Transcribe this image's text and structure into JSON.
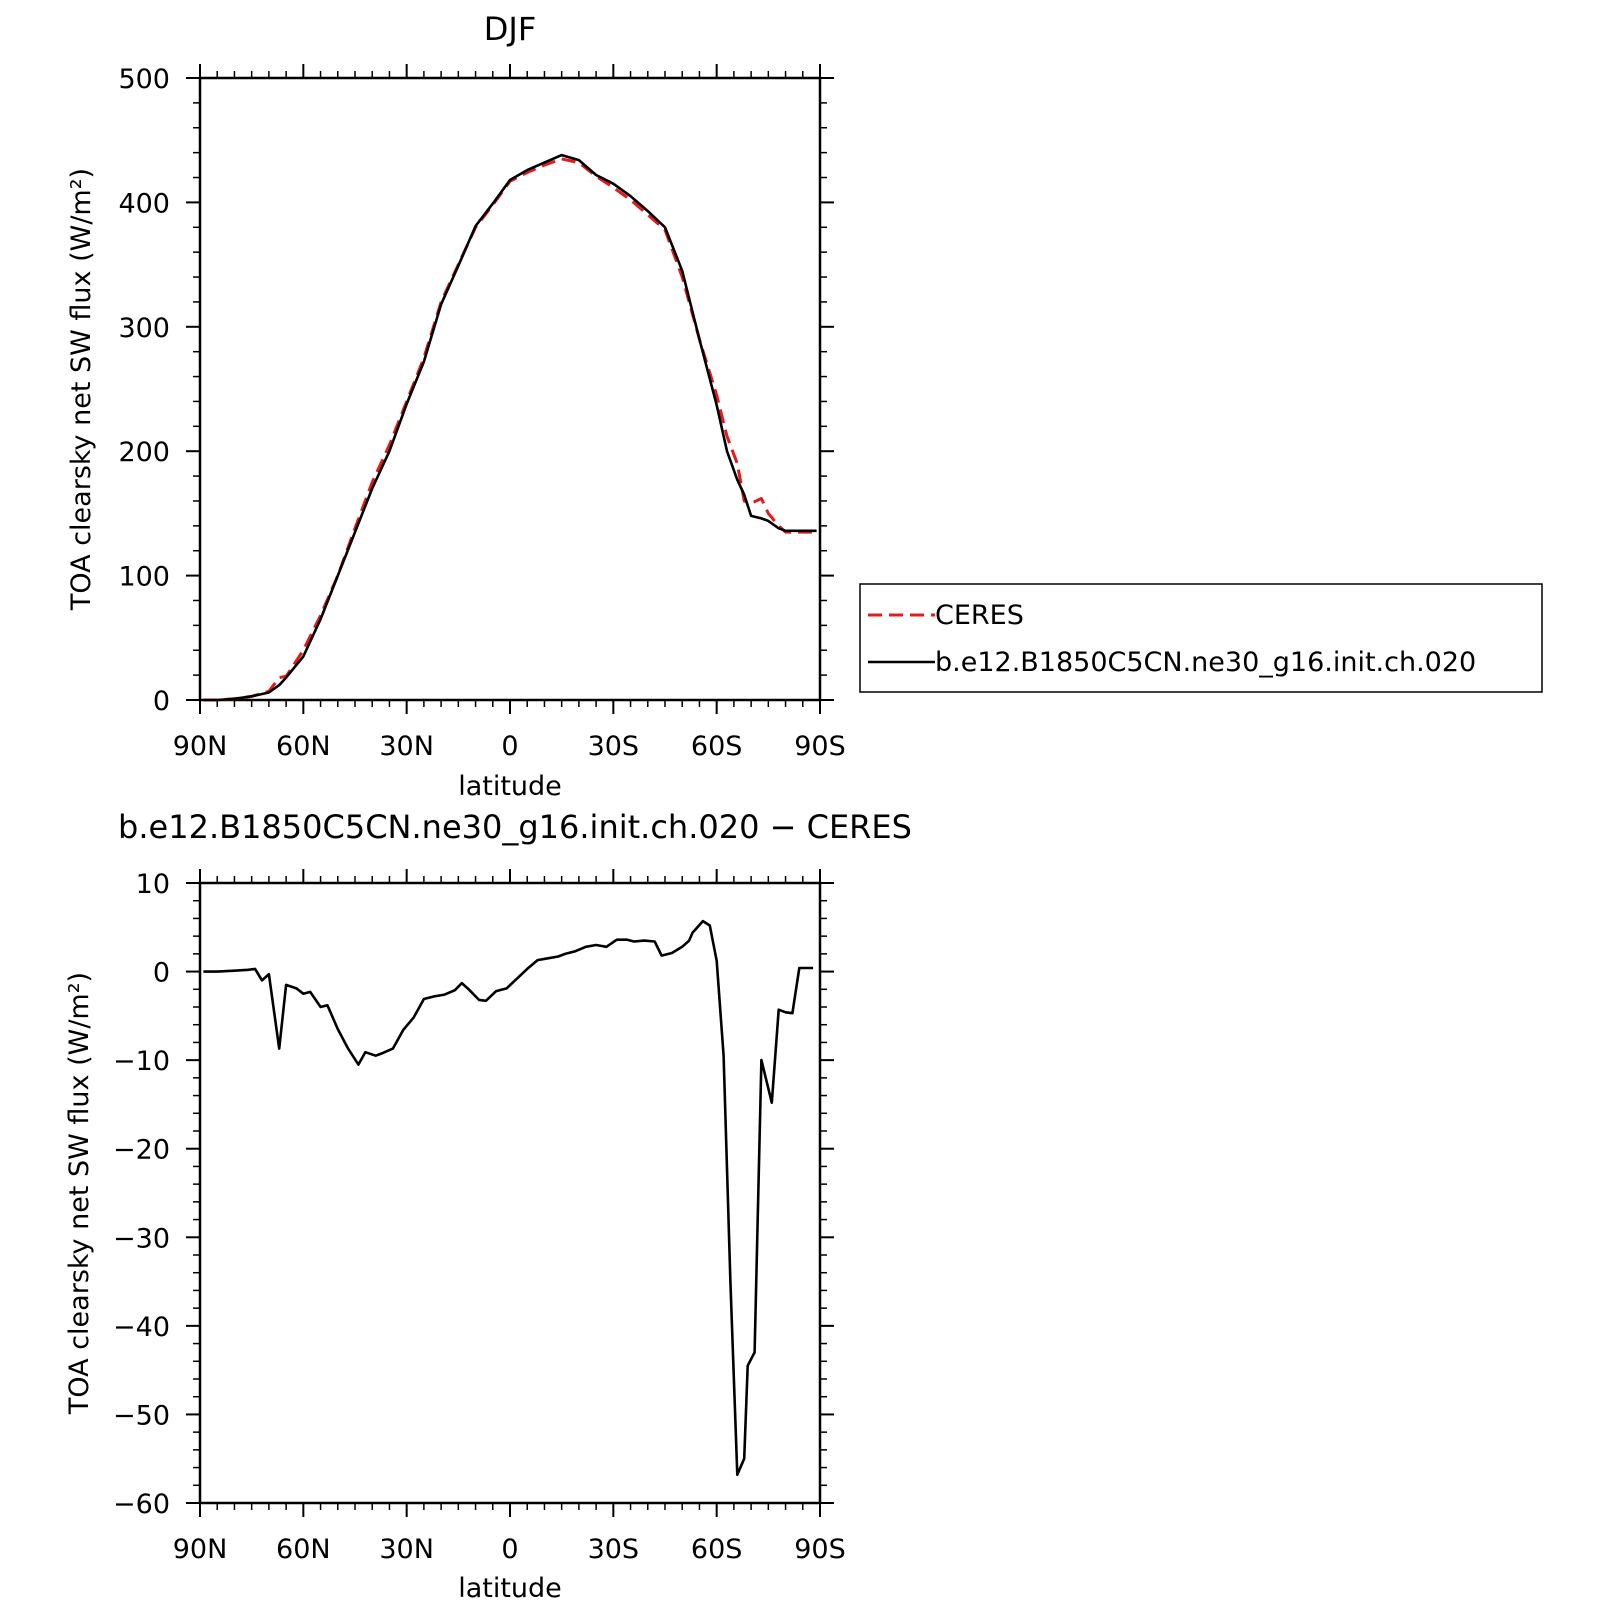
{
  "colors": {
    "ceres": "#e41a1c",
    "model": "#000000",
    "axes": "#000000"
  },
  "legend": {
    "placement": "right of top panel",
    "entries": [
      {
        "label": "CERES",
        "style": "dashed",
        "color": "#e41a1c"
      },
      {
        "label": "b.e12.B1850C5CN.ne30_g16.init.ch.020",
        "style": "solid",
        "color": "#000000"
      }
    ]
  },
  "chart_data": [
    {
      "type": "line",
      "title": "DJF",
      "xlabel": "latitude",
      "ylabel": "TOA clearsky net SW flux (W/m²)",
      "xlim": [
        90,
        -90
      ],
      "ylim": [
        0,
        500
      ],
      "xticks": [
        90,
        60,
        30,
        0,
        -30,
        -60,
        -90
      ],
      "xtick_labels": [
        "90N",
        "60N",
        "30N",
        "0",
        "30S",
        "60S",
        "90S"
      ],
      "yticks": [
        0,
        100,
        200,
        300,
        400,
        500
      ],
      "ytick_labels": [
        "0",
        "100",
        "200",
        "300",
        "400",
        "500"
      ],
      "series": [
        {
          "name": "CERES",
          "x": [
            89,
            85,
            80,
            75,
            70,
            67,
            65,
            60,
            55,
            50,
            45,
            40,
            35,
            30,
            25,
            20,
            15,
            10,
            5,
            0,
            -5,
            -10,
            -15,
            -20,
            -25,
            -30,
            -35,
            -40,
            -45,
            -50,
            -55,
            -60,
            -63,
            -66,
            -68,
            -70,
            -73,
            -75,
            -78,
            -80,
            -82,
            -84,
            -86,
            -89
          ],
          "y": [
            0,
            0,
            1,
            3,
            7,
            18,
            19,
            40,
            68,
            100,
            138,
            175,
            205,
            240,
            275,
            320,
            350,
            380,
            398,
            417,
            424,
            430,
            435,
            432,
            421,
            412,
            402,
            390,
            378,
            340,
            290,
            245,
            212,
            190,
            160,
            158,
            162,
            150,
            140,
            135,
            135,
            135,
            135,
            135
          ]
        },
        {
          "name": "b.e12.B1850C5CN.ne30_g16.init.ch.020",
          "x": [
            89,
            85,
            80,
            75,
            70,
            67,
            65,
            60,
            55,
            50,
            45,
            40,
            35,
            30,
            25,
            20,
            15,
            10,
            5,
            0,
            -5,
            -10,
            -15,
            -20,
            -25,
            -30,
            -35,
            -40,
            -45,
            -50,
            -55,
            -60,
            -63,
            -66,
            -68,
            -70,
            -73,
            -75,
            -78,
            -80,
            -82,
            -84,
            -86,
            -89
          ],
          "y": [
            0,
            0,
            1,
            3,
            6,
            12,
            18,
            35,
            65,
            100,
            135,
            170,
            200,
            238,
            272,
            318,
            349,
            381,
            399,
            418,
            426,
            432,
            438,
            434,
            422,
            415,
            405,
            393,
            380,
            345,
            290,
            237,
            200,
            177,
            165,
            148,
            146,
            144,
            138,
            136,
            136,
            136,
            136,
            136
          ]
        }
      ]
    },
    {
      "type": "line",
      "title": "b.e12.B1850C5CN.ne30_g16.init.ch.020 − CERES",
      "xlabel": "latitude",
      "ylabel": "TOA clearsky net SW flux (W/m²)",
      "xlim": [
        90,
        -90
      ],
      "ylim": [
        -60,
        10
      ],
      "xticks": [
        90,
        60,
        30,
        0,
        -30,
        -60,
        -90
      ],
      "xtick_labels": [
        "90N",
        "60N",
        "30N",
        "0",
        "30S",
        "60S",
        "90S"
      ],
      "yticks": [
        10,
        0,
        -10,
        -20,
        -30,
        -40,
        -50,
        -60
      ],
      "ytick_labels": [
        "10",
        "0",
        "−10",
        "−20",
        "−30",
        "−40",
        "−50",
        "−60"
      ],
      "series": [
        {
          "x": [
            89,
            85,
            80,
            76,
            74,
            72,
            70,
            67,
            65,
            62,
            60,
            58,
            55,
            53,
            50,
            47,
            44,
            42,
            39,
            37,
            34,
            31,
            28,
            25,
            22,
            19,
            16,
            14,
            12,
            9,
            7,
            4,
            1,
            -2,
            -5,
            -8,
            -11,
            -14,
            -16,
            -19,
            -22,
            -25,
            -28,
            -31,
            -34,
            -36,
            -39,
            -42,
            -44,
            -47,
            -50,
            -52,
            -53,
            -56,
            -58,
            -60,
            -62,
            -64,
            -66,
            -68,
            -69,
            -71,
            -73,
            -76,
            -78,
            -80,
            -82,
            -84,
            -86,
            -88
          ],
          "y": [
            0,
            0,
            0.1,
            0.2,
            0.3,
            -1,
            -0.3,
            -8.7,
            -1.5,
            -1.9,
            -2.5,
            -2.3,
            -4,
            -3.8,
            -6.5,
            -8.7,
            -10.5,
            -9.1,
            -9.5,
            -9.2,
            -8.7,
            -6.6,
            -5.2,
            -3.1,
            -2.8,
            -2.6,
            -2.1,
            -1.3,
            -2.0,
            -3.2,
            -3.3,
            -2.2,
            -1.9,
            -0.8,
            0.3,
            1.3,
            1.5,
            1.7,
            2.0,
            2.3,
            2.8,
            3.0,
            2.8,
            3.6,
            3.6,
            3.4,
            3.5,
            3.4,
            1.8,
            2.1,
            2.8,
            3.5,
            4.4,
            5.7,
            5.2,
            1.2,
            -9.5,
            -35,
            -56.8,
            -55,
            -44.5,
            -43,
            -10,
            -14.8,
            -4.3,
            -4.6,
            -4.7,
            0.4,
            0.4,
            0.4
          ]
        }
      ]
    }
  ]
}
